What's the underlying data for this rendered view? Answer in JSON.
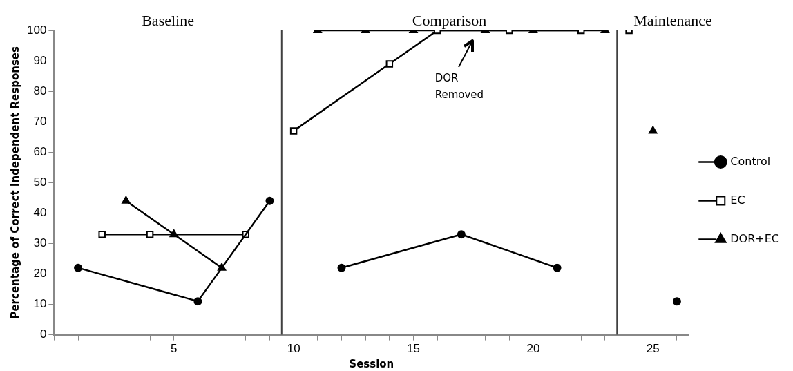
{
  "chart_data": {
    "type": "line",
    "xlabel": "Session",
    "ylabel": "Percentage of Correct Independent Responses",
    "xlim": [
      0,
      26.5
    ],
    "xticks": [
      {
        "value": 0,
        "label": null
      },
      {
        "value": 1,
        "label": null
      },
      {
        "value": 2,
        "label": null
      },
      {
        "value": 3,
        "label": null
      },
      {
        "value": 4,
        "label": null
      },
      5,
      {
        "value": 6,
        "label": null
      },
      {
        "value": 7,
        "label": null
      },
      {
        "value": 8,
        "label": null
      },
      {
        "value": 9,
        "label": null
      },
      10,
      {
        "value": 11,
        "label": null
      },
      {
        "value": 12,
        "label": null
      },
      {
        "value": 13,
        "label": null
      },
      {
        "value": 14,
        "label": null
      },
      15,
      {
        "value": 16,
        "label": null
      },
      {
        "value": 17,
        "label": null
      },
      {
        "value": 18,
        "label": null
      },
      {
        "value": 19,
        "label": null
      },
      20,
      {
        "value": 21,
        "label": null
      },
      {
        "value": 22,
        "label": null
      },
      {
        "value": 23,
        "label": null
      },
      {
        "value": 24,
        "label": null
      },
      25,
      {
        "value": 26,
        "label": null
      }
    ],
    "ylim": [
      0,
      100
    ],
    "yticks": [
      0,
      10,
      20,
      30,
      40,
      50,
      60,
      70,
      80,
      90,
      100
    ],
    "grid": false,
    "legend": "right",
    "line_style": "solid",
    "series": [
      {
        "name": "Control",
        "color": "#000000",
        "marker": "circle",
        "x": [
          1,
          6,
          9,
          9.5,
          12,
          17,
          21,
          23.5,
          26
        ],
        "values": [
          22,
          11,
          44,
          null,
          22,
          33,
          22,
          null,
          11
        ]
      },
      {
        "name": "EC",
        "color": "#000000",
        "marker": "square",
        "x": [
          2,
          4,
          8,
          9.5,
          10,
          14,
          16,
          19,
          22,
          23.5,
          24
        ],
        "values": [
          33,
          33,
          33,
          null,
          67,
          89,
          100,
          100,
          100,
          null,
          100
        ]
      },
      {
        "name": "DOR+EC",
        "color": "#000000",
        "marker": "triangle",
        "x": [
          3,
          5,
          7,
          9.5,
          11,
          13,
          15,
          18,
          20,
          23,
          23.5,
          25
        ],
        "values": [
          44,
          33,
          22,
          null,
          100,
          100,
          100,
          100,
          100,
          100,
          null,
          67
        ]
      }
    ],
    "ref_lines": [
      {
        "axis": "x",
        "value": 9.5,
        "color": "#404040"
      },
      {
        "axis": "x",
        "value": 23.5,
        "color": "#404040"
      }
    ],
    "annotations": [
      "Baseline",
      "Comparison",
      "Maintenance",
      "DOR Removed"
    ]
  }
}
